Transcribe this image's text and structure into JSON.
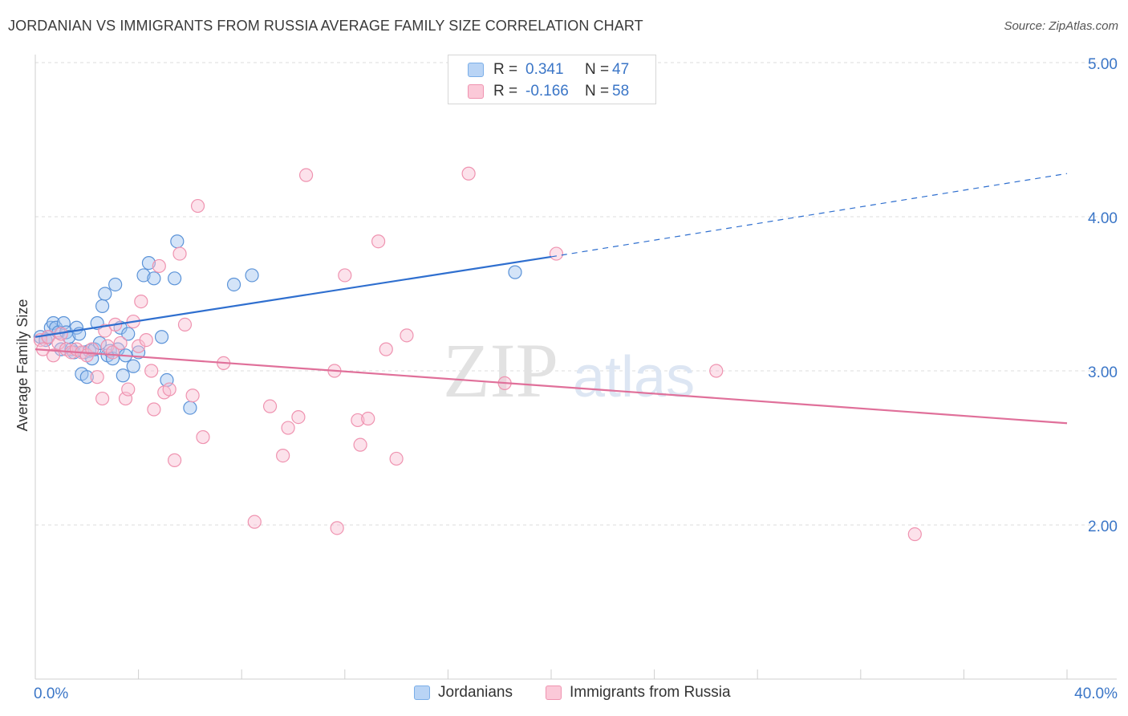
{
  "title": "JORDANIAN VS IMMIGRANTS FROM RUSSIA AVERAGE FAMILY SIZE CORRELATION CHART",
  "source": "Source: ZipAtlas.com",
  "watermark": {
    "zip": "ZIP",
    "atlas": "atlas"
  },
  "legend": {
    "rows": [
      {
        "r_label": "R =",
        "r_value": "0.341",
        "n_label": "N =",
        "n_value": "47",
        "color": "#7aaee8",
        "fill": "#b9d4f5"
      },
      {
        "r_label": "R =",
        "r_value": "-0.166",
        "n_label": "N =",
        "n_value": "58",
        "color": "#ef93b0",
        "fill": "#fbc9d8"
      }
    ]
  },
  "bottom_legend": {
    "jordanians": "Jordanians",
    "russia": "Immigrants from Russia"
  },
  "chart_data": {
    "type": "scatter",
    "ylabel": "Average Family Size",
    "x_tick_labels": {
      "min": "0.0%",
      "max": "40.0%"
    },
    "y_tick_labels": [
      "2.00",
      "3.00",
      "4.00",
      "5.00"
    ],
    "xlim": [
      0,
      40
    ],
    "ylim": [
      1.0,
      5.0
    ],
    "series": [
      {
        "name": "Jordanians",
        "color": "#5b93d8",
        "fill": "rgba(160,196,240,0.45)",
        "trend": {
          "x0": 0,
          "y0": 3.22,
          "x1": 20,
          "y1": 3.74,
          "dash_to": 40,
          "dash_y": 4.28,
          "color": "#2f6fcf"
        },
        "points": [
          [
            0.2,
            3.22
          ],
          [
            0.4,
            3.2
          ],
          [
            0.5,
            3.22
          ],
          [
            0.6,
            3.28
          ],
          [
            0.7,
            3.31
          ],
          [
            0.8,
            3.28
          ],
          [
            0.9,
            3.25
          ],
          [
            1.0,
            3.14
          ],
          [
            1.1,
            3.31
          ],
          [
            1.2,
            3.25
          ],
          [
            1.3,
            3.22
          ],
          [
            1.4,
            3.14
          ],
          [
            1.5,
            3.12
          ],
          [
            1.6,
            3.28
          ],
          [
            1.7,
            3.24
          ],
          [
            1.8,
            2.98
          ],
          [
            1.9,
            3.12
          ],
          [
            2.0,
            2.96
          ],
          [
            2.1,
            3.13
          ],
          [
            2.2,
            3.08
          ],
          [
            2.3,
            3.14
          ],
          [
            2.4,
            3.31
          ],
          [
            2.5,
            3.18
          ],
          [
            2.6,
            3.42
          ],
          [
            2.7,
            3.5
          ],
          [
            2.8,
            3.1
          ],
          [
            2.9,
            3.13
          ],
          [
            3.0,
            3.08
          ],
          [
            3.1,
            3.56
          ],
          [
            3.2,
            3.14
          ],
          [
            3.3,
            3.28
          ],
          [
            3.4,
            2.97
          ],
          [
            3.5,
            3.1
          ],
          [
            3.6,
            3.24
          ],
          [
            3.8,
            3.03
          ],
          [
            4.0,
            3.12
          ],
          [
            4.2,
            3.62
          ],
          [
            4.4,
            3.7
          ],
          [
            4.6,
            3.6
          ],
          [
            4.9,
            3.22
          ],
          [
            5.1,
            2.94
          ],
          [
            5.4,
            3.6
          ],
          [
            5.5,
            3.84
          ],
          [
            6.0,
            2.76
          ],
          [
            7.7,
            3.56
          ],
          [
            8.4,
            3.62
          ],
          [
            18.6,
            3.64
          ]
        ],
        "r": 8
      },
      {
        "name": "Immigrants from Russia",
        "color": "#ef93b0",
        "fill": "rgba(248,190,210,0.45)",
        "trend": {
          "x0": 0,
          "y0": 3.14,
          "x1": 40,
          "y1": 2.66,
          "color": "#e0709a"
        },
        "points": [
          [
            0.2,
            3.2
          ],
          [
            0.3,
            3.14
          ],
          [
            0.5,
            3.22
          ],
          [
            0.7,
            3.1
          ],
          [
            0.9,
            3.18
          ],
          [
            1.0,
            3.24
          ],
          [
            1.2,
            3.14
          ],
          [
            1.4,
            3.12
          ],
          [
            1.6,
            3.14
          ],
          [
            1.8,
            3.12
          ],
          [
            2.0,
            3.1
          ],
          [
            2.2,
            3.14
          ],
          [
            2.4,
            2.96
          ],
          [
            2.6,
            2.82
          ],
          [
            2.7,
            3.26
          ],
          [
            2.8,
            3.16
          ],
          [
            3.0,
            3.12
          ],
          [
            3.1,
            3.3
          ],
          [
            3.3,
            3.18
          ],
          [
            3.5,
            2.82
          ],
          [
            3.6,
            2.88
          ],
          [
            3.8,
            3.32
          ],
          [
            4.0,
            3.16
          ],
          [
            4.1,
            3.45
          ],
          [
            4.3,
            3.2
          ],
          [
            4.5,
            3.0
          ],
          [
            4.6,
            2.75
          ],
          [
            4.8,
            3.68
          ],
          [
            5.0,
            2.86
          ],
          [
            5.2,
            2.88
          ],
          [
            5.4,
            2.42
          ],
          [
            5.6,
            3.76
          ],
          [
            5.8,
            3.3
          ],
          [
            6.1,
            2.84
          ],
          [
            6.3,
            4.07
          ],
          [
            6.5,
            2.57
          ],
          [
            7.3,
            3.05
          ],
          [
            8.5,
            2.02
          ],
          [
            9.1,
            2.77
          ],
          [
            9.6,
            2.45
          ],
          [
            9.8,
            2.63
          ],
          [
            10.2,
            2.7
          ],
          [
            10.5,
            4.27
          ],
          [
            11.6,
            3.0
          ],
          [
            11.7,
            1.98
          ],
          [
            12.0,
            3.62
          ],
          [
            12.5,
            2.68
          ],
          [
            12.6,
            2.52
          ],
          [
            12.9,
            2.69
          ],
          [
            13.3,
            3.84
          ],
          [
            13.6,
            3.14
          ],
          [
            14.0,
            2.43
          ],
          [
            14.4,
            3.23
          ],
          [
            16.8,
            4.28
          ],
          [
            18.2,
            2.92
          ],
          [
            20.2,
            3.76
          ],
          [
            26.4,
            3.0
          ],
          [
            34.1,
            1.94
          ]
        ],
        "r": 8
      }
    ]
  }
}
